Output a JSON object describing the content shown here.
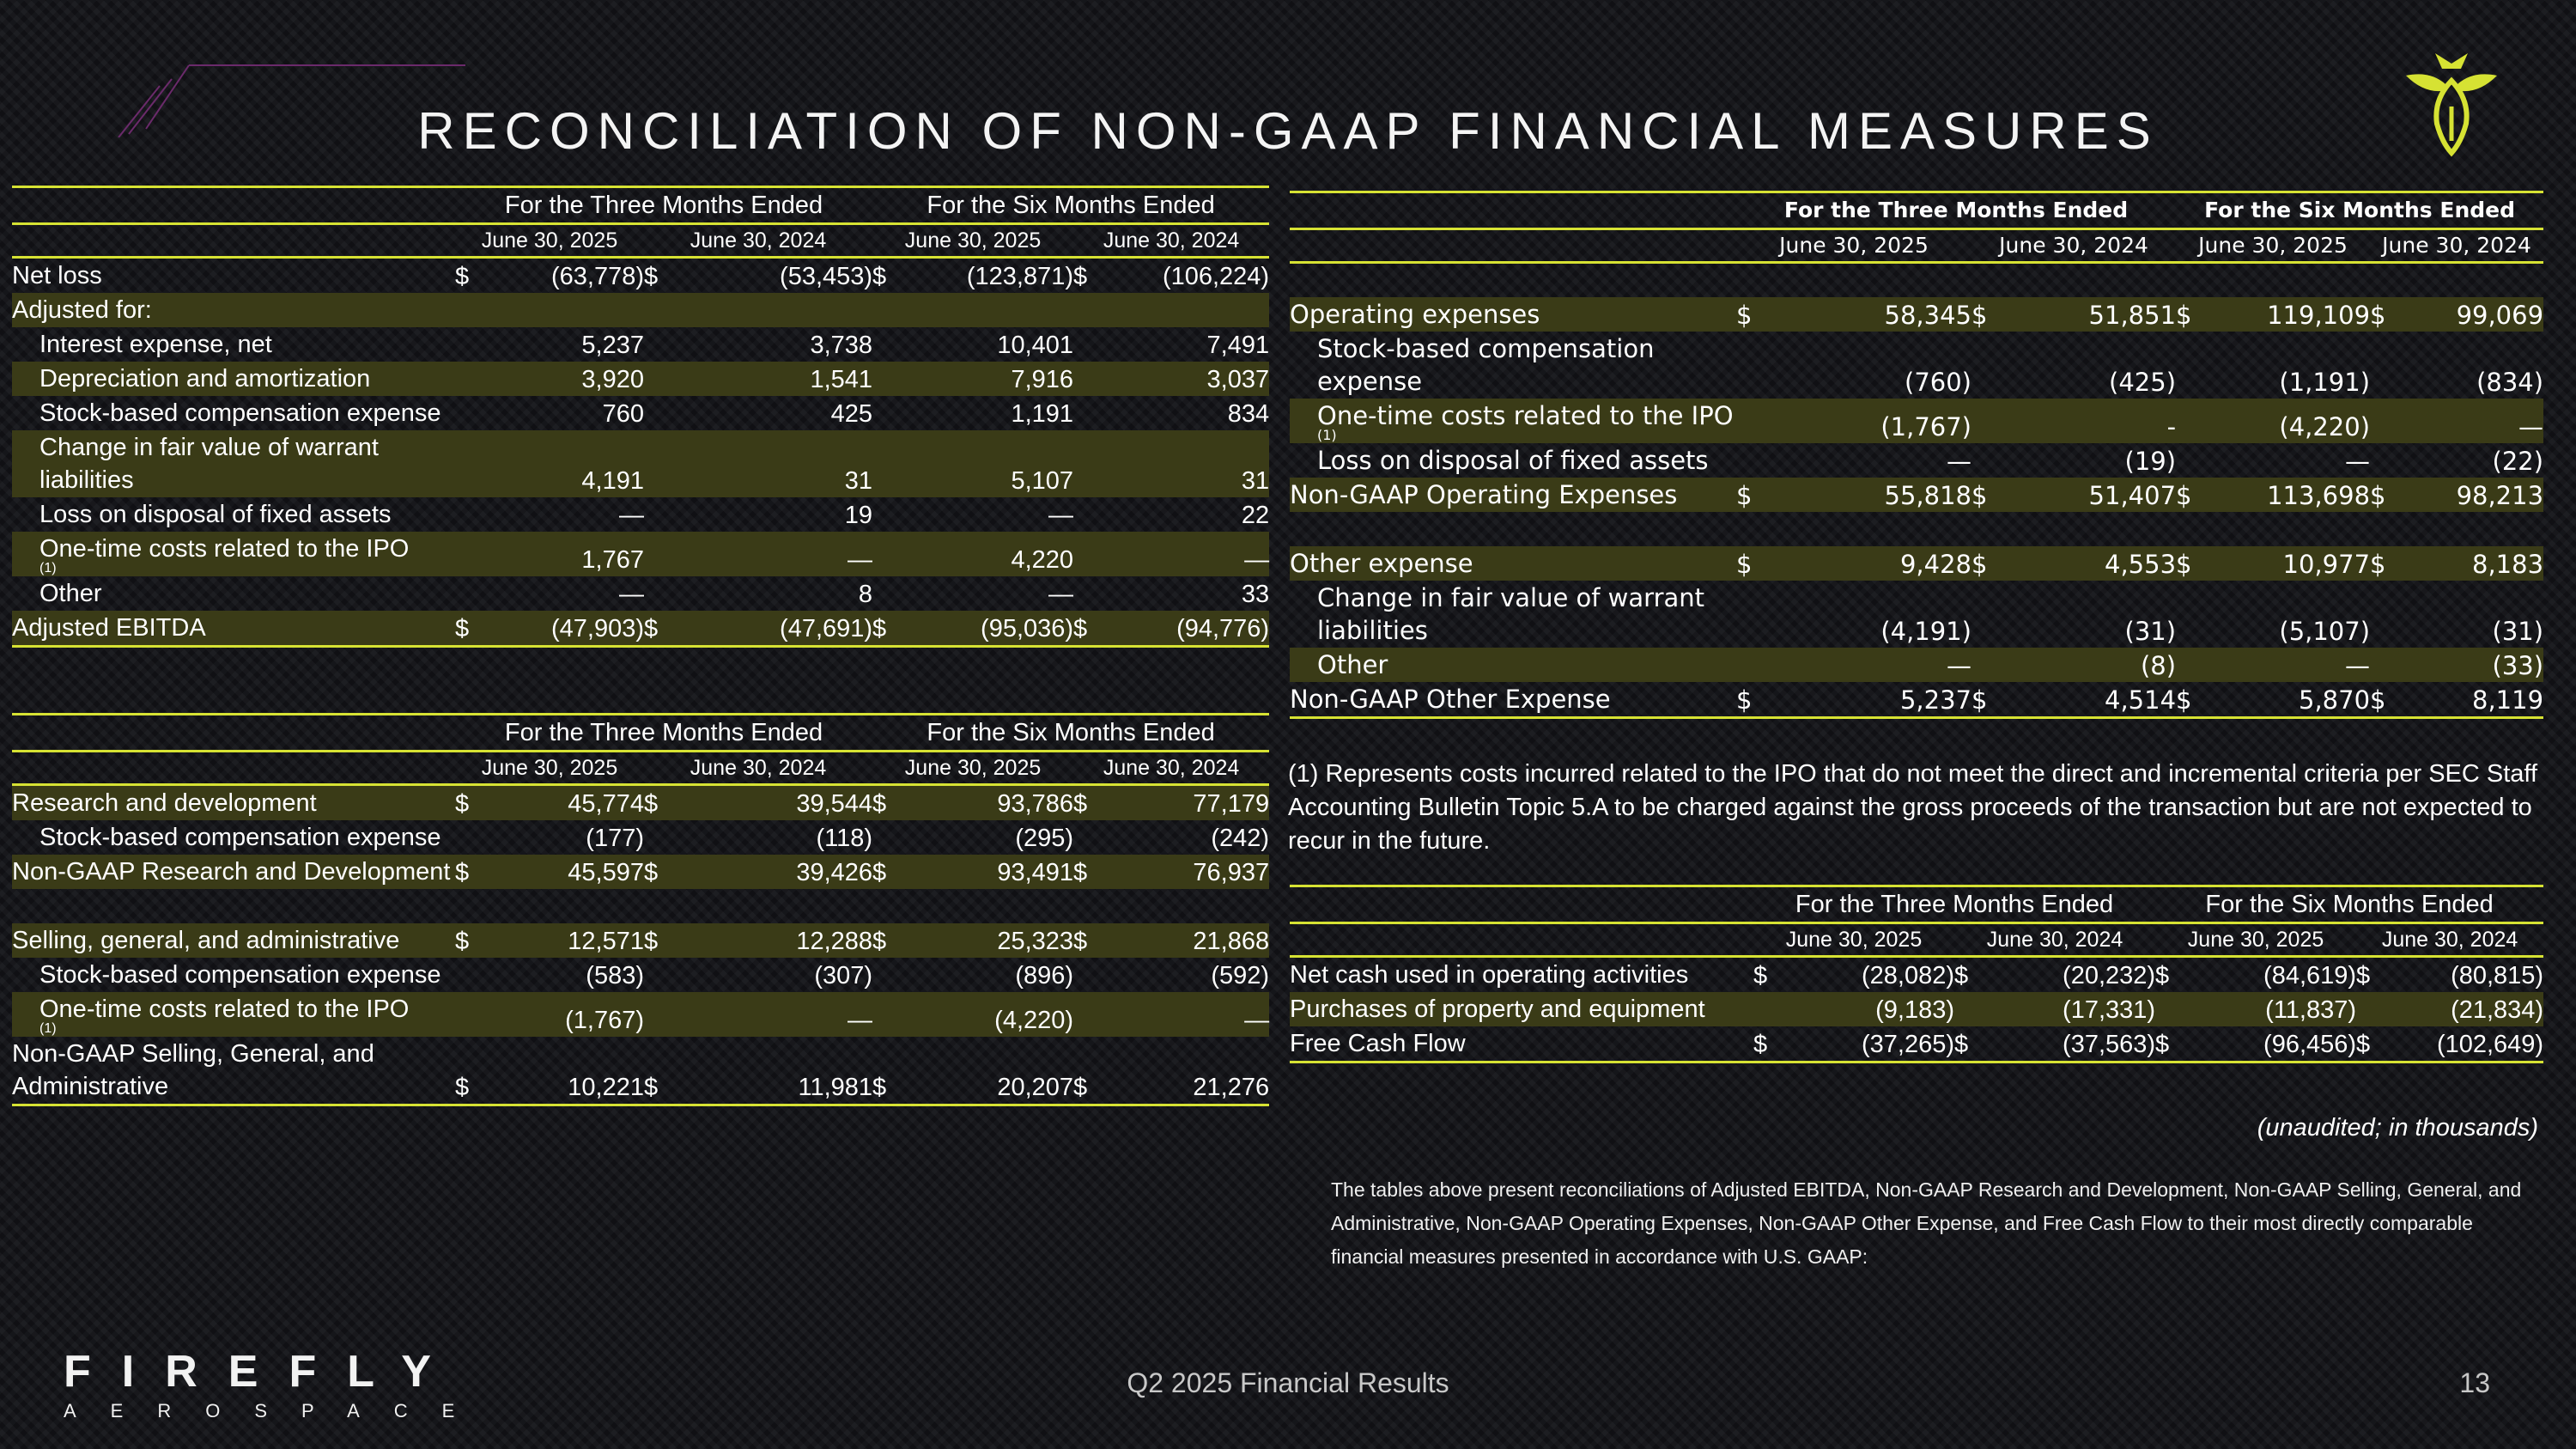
{
  "title": "RECONCILIATION OF NON-GAAP FINANCIAL MEASURES",
  "headers": {
    "three_months": "For the Three Months Ended",
    "six_months": "For the Six Months Ended",
    "d1": "June 30, 2025",
    "d2": "June 30, 2024",
    "d3": "June 30, 2025",
    "d4": "June 30, 2024"
  },
  "ebitda": {
    "rows": [
      {
        "label": "Net loss",
        "d1": "$",
        "v1": "(63,778)",
        "d2": "$",
        "v2": "(53,453)",
        "d3": "$",
        "v3": "(123,871)",
        "d4": "$",
        "v4": "(106,224)"
      },
      {
        "label": "Adjusted for:",
        "d1": "",
        "v1": "",
        "d2": "",
        "v2": "",
        "d3": "",
        "v3": "",
        "d4": "",
        "v4": ""
      },
      {
        "label": "Interest expense, net",
        "d1": "",
        "v1": "5,237",
        "d2": "",
        "v2": "3,738",
        "d3": "",
        "v3": "10,401",
        "d4": "",
        "v4": "7,491"
      },
      {
        "label": "Depreciation and amortization",
        "d1": "",
        "v1": "3,920",
        "d2": "",
        "v2": "1,541",
        "d3": "",
        "v3": "7,916",
        "d4": "",
        "v4": "3,037"
      },
      {
        "label": "Stock-based compensation expense",
        "d1": "",
        "v1": "760",
        "d2": "",
        "v2": "425",
        "d3": "",
        "v3": "1,191",
        "d4": "",
        "v4": "834"
      },
      {
        "label": "Change in fair value of warrant liabilities",
        "d1": "",
        "v1": "4,191",
        "d2": "",
        "v2": "31",
        "d3": "",
        "v3": "5,107",
        "d4": "",
        "v4": "31"
      },
      {
        "label": "Loss on disposal of fixed assets",
        "d1": "",
        "v1": "—",
        "d2": "",
        "v2": "19",
        "d3": "",
        "v3": "—",
        "d4": "",
        "v4": "22"
      },
      {
        "label": "One-time costs related to the IPO",
        "sup": "(1)",
        "d1": "",
        "v1": "1,767",
        "d2": "",
        "v2": "—",
        "d3": "",
        "v3": "4,220",
        "d4": "",
        "v4": "—"
      },
      {
        "label": "Other",
        "d1": "",
        "v1": "—",
        "d2": "",
        "v2": "8",
        "d3": "",
        "v3": "—",
        "d4": "",
        "v4": "33"
      },
      {
        "label": "Adjusted EBITDA",
        "d1": "$",
        "v1": "(47,903)",
        "d2": "$",
        "v2": "(47,691)",
        "d3": "$",
        "v3": "(95,036)",
        "d4": "$",
        "v4": "(94,776)"
      }
    ]
  },
  "rd_sga": {
    "rows": [
      {
        "label": "Research and development",
        "d1": "$",
        "v1": "45,774",
        "d2": "$",
        "v2": "39,544",
        "d3": "$",
        "v3": "93,786",
        "d4": "$",
        "v4": "77,179"
      },
      {
        "label": "Stock-based compensation expense",
        "d1": "",
        "v1": "(177)",
        "d2": "",
        "v2": "(118)",
        "d3": "",
        "v3": "(295)",
        "d4": "",
        "v4": "(242)"
      },
      {
        "label": "Non-GAAP Research and Development",
        "d1": "$",
        "v1": "45,597",
        "d2": "$",
        "v2": "39,426",
        "d3": "$",
        "v3": "93,491",
        "d4": "$",
        "v4": "76,937"
      },
      {
        "label": "Selling, general, and administrative",
        "d1": "$",
        "v1": "12,571",
        "d2": "$",
        "v2": "12,288",
        "d3": "$",
        "v3": "25,323",
        "d4": "$",
        "v4": "21,868"
      },
      {
        "label": "Stock-based compensation expense",
        "d1": "",
        "v1": "(583)",
        "d2": "",
        "v2": "(307)",
        "d3": "",
        "v3": "(896)",
        "d4": "",
        "v4": "(592)"
      },
      {
        "label": "One-time costs related to the IPO",
        "sup": "(1)",
        "d1": "",
        "v1": "(1,767)",
        "d2": "",
        "v2": "—",
        "d3": "",
        "v3": "(4,220)",
        "d4": "",
        "v4": "—"
      },
      {
        "label": "Non-GAAP Selling, General, and Administrative",
        "d1": "$",
        "v1": "10,221",
        "d2": "$",
        "v2": "11,981",
        "d3": "$",
        "v3": "20,207",
        "d4": "$",
        "v4": "21,276"
      }
    ]
  },
  "opex": {
    "rows": [
      {
        "label": "Operating expenses",
        "d1": "$",
        "v1": "58,345",
        "d2": "$",
        "v2": "51,851",
        "d3": "$",
        "v3": "119,109",
        "d4": "$",
        "v4": "99,069"
      },
      {
        "label": "Stock-based compensation expense",
        "d1": "",
        "v1": "(760)",
        "d2": "",
        "v2": "(425)",
        "d3": "",
        "v3": "(1,191)",
        "d4": "",
        "v4": "(834)"
      },
      {
        "label": "One-time costs related to the IPO",
        "sup": "(1)",
        "d1": "",
        "v1": "(1,767)",
        "d2": "",
        "v2": "-",
        "d3": "",
        "v3": "(4,220)",
        "d4": "",
        "v4": "—"
      },
      {
        "label": "Loss on disposal of fixed assets",
        "d1": "",
        "v1": "—",
        "d2": "",
        "v2": "(19)",
        "d3": "",
        "v3": "—",
        "d4": "",
        "v4": "(22)"
      },
      {
        "label": "Non-GAAP Operating Expenses",
        "d1": "$",
        "v1": "55,818",
        "d2": "$",
        "v2": "51,407",
        "d3": "$",
        "v3": "113,698",
        "d4": "$",
        "v4": "98,213"
      },
      {
        "label": "Other expense",
        "d1": "$",
        "v1": "9,428",
        "d2": "$",
        "v2": "4,553",
        "d3": "$",
        "v3": "10,977",
        "d4": "$",
        "v4": "8,183"
      },
      {
        "label": "Change in fair value of warrant liabilities",
        "d1": "",
        "v1": "(4,191)",
        "d2": "",
        "v2": "(31)",
        "d3": "",
        "v3": "(5,107)",
        "d4": "",
        "v4": "(31)"
      },
      {
        "label": "Other",
        "d1": "",
        "v1": "—",
        "d2": "",
        "v2": "(8)",
        "d3": "",
        "v3": "—",
        "d4": "",
        "v4": "(33)"
      },
      {
        "label": "Non-GAAP Other Expense",
        "d1": "$",
        "v1": "5,237",
        "d2": "$",
        "v2": "4,514",
        "d3": "$",
        "v3": "5,870",
        "d4": "$",
        "v4": "8,119"
      }
    ]
  },
  "footnote": "(1) Represents costs incurred related to the IPO that do not meet the direct and incremental criteria per SEC Staff Accounting Bulletin Topic 5.A to be charged against the gross proceeds of the transaction but are not expected to recur in the future.",
  "fcf": {
    "rows": [
      {
        "label": "Net cash used in operating activities",
        "d1": "$",
        "v1": "(28,082)",
        "d2": "$",
        "v2": "(20,232)",
        "d3": "$",
        "v3": "(84,619)",
        "d4": "$",
        "v4": "(80,815)"
      },
      {
        "label": "Purchases of property and equipment",
        "d1": "",
        "v1": "(9,183)",
        "d2": "",
        "v2": "(17,331)",
        "d3": "",
        "v3": "(11,837)",
        "d4": "",
        "v4": "(21,834)"
      },
      {
        "label": "Free Cash Flow",
        "d1": "$",
        "v1": "(37,265)",
        "d2": "$",
        "v2": "(37,563)",
        "d3": "$",
        "v3": "(96,456)",
        "d4": "$",
        "v4": "(102,649)"
      }
    ]
  },
  "unaudited": "(unaudited; in thousands)",
  "intro": "The  tables above present reconciliations of Adjusted EBITDA, Non-GAAP Research and Development, Non-GAAP Selling, General, and Administrative, Non-GAAP Operating Expenses, Non-GAAP Other Expense, and Free Cash Flow to their most directly comparable financial measures presented in accordance with U.S. GAAP:",
  "footer": {
    "center": "Q2 2025 Financial Results",
    "page": "13",
    "brand_top": "FIREFLY",
    "brand_bottom": "AEROSPACE"
  },
  "colors": {
    "accent": "#d6e233",
    "highlight": "#3a3b17",
    "deco": "#7a2d7a"
  }
}
